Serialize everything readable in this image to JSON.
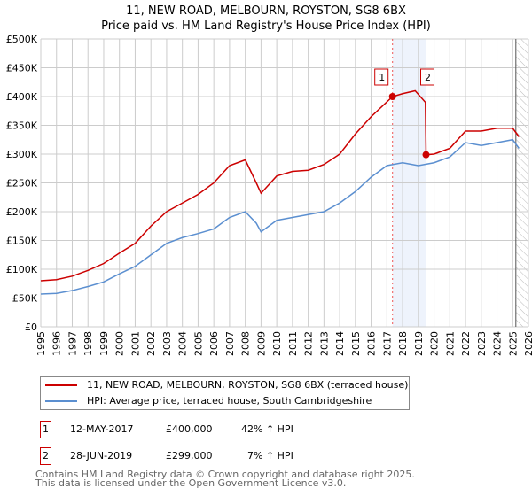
{
  "title_line1": "11, NEW ROAD, MELBOURN, ROYSTON, SG8 6BX",
  "title_line2": "Price paid vs. HM Land Registry's House Price Index (HPI)",
  "colors": {
    "property": "#cc0000",
    "hpi": "#5b8fd0",
    "shade": "#eef3fc",
    "grid": "#cccccc"
  },
  "chart_data": {
    "type": "line",
    "xlim": [
      1995,
      2026
    ],
    "ylim": [
      0,
      500000
    ],
    "x_ticks": [
      "1995",
      "1996",
      "1997",
      "1998",
      "1999",
      "2000",
      "2001",
      "2002",
      "2003",
      "2004",
      "2005",
      "2006",
      "2007",
      "2008",
      "2009",
      "2010",
      "2011",
      "2012",
      "2013",
      "2014",
      "2015",
      "2016",
      "2017",
      "2018",
      "2019",
      "2020",
      "2021",
      "2022",
      "2023",
      "2024",
      "2025",
      "2026"
    ],
    "y_ticks": [
      {
        "v": 0,
        "label": "£0"
      },
      {
        "v": 50000,
        "label": "£50K"
      },
      {
        "v": 100000,
        "label": "£100K"
      },
      {
        "v": 150000,
        "label": "£150K"
      },
      {
        "v": 200000,
        "label": "£200K"
      },
      {
        "v": 250000,
        "label": "£250K"
      },
      {
        "v": 300000,
        "label": "£300K"
      },
      {
        "v": 350000,
        "label": "£350K"
      },
      {
        "v": 400000,
        "label": "£400K"
      },
      {
        "v": 450000,
        "label": "£450K"
      },
      {
        "v": 500000,
        "label": "£500K"
      }
    ],
    "shaded_range": [
      2017.36,
      2019.49
    ],
    "future_from": 2025.2,
    "series": [
      {
        "name": "11, NEW ROAD, MELBOURN, ROYSTON, SG8 6BX (terraced house)",
        "color": "#cc0000",
        "x": [
          1995,
          1996,
          1997,
          1998,
          1999,
          2000,
          2001,
          2002,
          2003,
          2004,
          2005,
          2006,
          2007,
          2008,
          2008.7,
          2009,
          2010,
          2011,
          2012,
          2013,
          2014,
          2015,
          2016,
          2017.36,
          2018,
          2018.8,
          2019.45,
          2019.49,
          2020,
          2021,
          2022,
          2023,
          2024,
          2025,
          2025.4
        ],
        "y": [
          80000,
          82000,
          88000,
          98000,
          110000,
          128000,
          145000,
          175000,
          200000,
          215000,
          230000,
          250000,
          280000,
          290000,
          250000,
          232000,
          262000,
          270000,
          272000,
          282000,
          300000,
          335000,
          365000,
          400000,
          405000,
          410000,
          390000,
          299000,
          300000,
          310000,
          340000,
          340000,
          345000,
          345000,
          330000
        ]
      },
      {
        "name": "HPI: Average price, terraced house, South Cambridgeshire",
        "color": "#5b8fd0",
        "x": [
          1995,
          1996,
          1997,
          1998,
          1999,
          2000,
          2001,
          2002,
          2003,
          2004,
          2005,
          2006,
          2007,
          2008,
          2008.7,
          2009,
          2010,
          2011,
          2012,
          2013,
          2014,
          2015,
          2016,
          2017,
          2018,
          2019,
          2020,
          2021,
          2022,
          2023,
          2024,
          2025,
          2025.4
        ],
        "y": [
          57000,
          58000,
          63000,
          70000,
          78000,
          92000,
          105000,
          125000,
          145000,
          155000,
          162000,
          170000,
          190000,
          200000,
          180000,
          165000,
          185000,
          190000,
          195000,
          200000,
          215000,
          235000,
          260000,
          280000,
          285000,
          280000,
          285000,
          295000,
          320000,
          315000,
          320000,
          325000,
          310000
        ]
      }
    ],
    "annotations": [
      {
        "label": "1",
        "x": 2017.36,
        "y": 400000
      },
      {
        "label": "2",
        "x": 2019.49,
        "y": 299000
      }
    ]
  },
  "legend": [
    {
      "label": "11, NEW ROAD, MELBOURN, ROYSTON, SG8 6BX (terraced house)"
    },
    {
      "label": "HPI: Average price, terraced house, South Cambridgeshire"
    }
  ],
  "transactions": [
    {
      "num": "1",
      "date": "12-MAY-2017",
      "price": "£400,000",
      "hpi": "42% ↑ HPI"
    },
    {
      "num": "2",
      "date": "28-JUN-2019",
      "price": "£299,000",
      "hpi": "7% ↑ HPI"
    }
  ],
  "footer_line1": "Contains HM Land Registry data © Crown copyright and database right 2025.",
  "footer_line2": "This data is licensed under the Open Government Licence v3.0."
}
